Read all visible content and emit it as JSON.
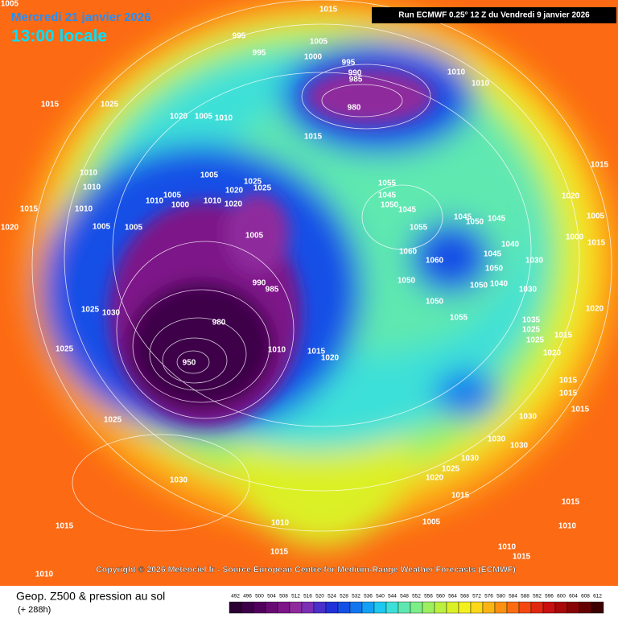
{
  "header": {
    "date": "Mercredi 21 janvier 2026",
    "time": "13:00 locale",
    "run": "Run ECMWF 0.25° 12 Z du Vendredi 9 janvier 2026"
  },
  "copyright": "Copyright © 2026 Meteociel.fr - Source European Centre for Medium-Range Weather Forecasts (ECMWF)",
  "legend": {
    "title": "Geop. Z500 & pression au sol",
    "lead": "(+ 288h)",
    "values": [
      492,
      496,
      500,
      504,
      508,
      512,
      516,
      520,
      524,
      528,
      532,
      536,
      540,
      544,
      548,
      552,
      556,
      560,
      564,
      568,
      572,
      576,
      580,
      584,
      588,
      592,
      596,
      600,
      604,
      608,
      612
    ],
    "colors": [
      "#2b0033",
      "#3d0048",
      "#52005e",
      "#680a74",
      "#7d1488",
      "#8f2a9c",
      "#7a2fb5",
      "#4b2fc9",
      "#2330d8",
      "#1450e6",
      "#1175f0",
      "#14a0f5",
      "#1ec8f0",
      "#3ce0d8",
      "#5ee8b0",
      "#7cee88",
      "#9cf060",
      "#bcf040",
      "#dcf028",
      "#f4f020",
      "#fcd818",
      "#fcb414",
      "#fc9010",
      "#fc6c10",
      "#f44810",
      "#e02810",
      "#c81010",
      "#a80808",
      "#880404",
      "#640202",
      "#3c0000"
    ]
  },
  "isobars": [
    "1005",
    "1015",
    "995",
    "1005",
    "995",
    "1000",
    "995",
    "990",
    "985",
    "1010",
    "1010",
    "1015",
    "1025",
    "1020",
    "1005",
    "1010",
    "980",
    "1015",
    "1005",
    "1025",
    "1020",
    "1025",
    "1010",
    "1010",
    "1015",
    "1010",
    "1010",
    "1005",
    "1000",
    "1010",
    "1020",
    "1005",
    "1055",
    "1045",
    "1050",
    "1045",
    "1055",
    "1060",
    "1060",
    "1050",
    "1050",
    "1055",
    "1020",
    "1005",
    "1005",
    "990",
    "985",
    "980",
    "950",
    "1010",
    "1015",
    "1020",
    "1025",
    "1030",
    "1025",
    "1025",
    "1030",
    "1015",
    "1010",
    "1015",
    "1020",
    "1005",
    "1000",
    "1015",
    "1045",
    "1050",
    "1045",
    "1040",
    "1045",
    "1050",
    "1030",
    "1050",
    "1040",
    "1030",
    "1035",
    "1025",
    "1025",
    "1020",
    "1015",
    "1020",
    "1015",
    "1015",
    "1015",
    "1030",
    "1030",
    "1030",
    "1030",
    "1025",
    "1020",
    "1015",
    "1010",
    "1005",
    "1015",
    "1015",
    "1010",
    "1010",
    "1015"
  ]
}
